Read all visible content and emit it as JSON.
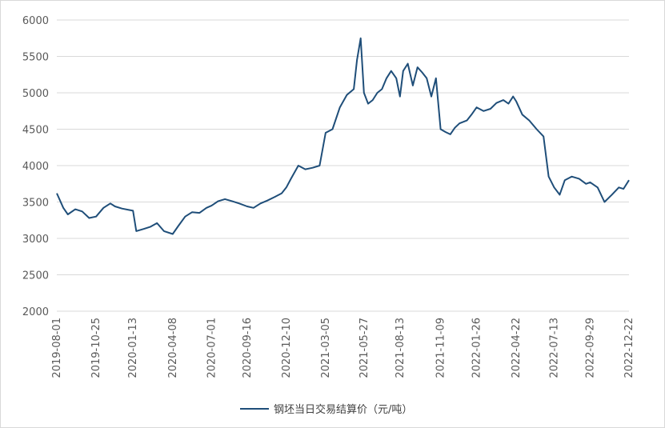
{
  "chart_data": {
    "type": "line",
    "title": "",
    "xlabel": "",
    "ylabel": "",
    "ylim": [
      2000,
      6000
    ],
    "yticks": [
      2000,
      2500,
      3000,
      3500,
      4000,
      4500,
      5000,
      5500,
      6000
    ],
    "xticks": [
      "2019-08-01",
      "2019-10-25",
      "2020-01-13",
      "2020-04-08",
      "2020-07-01",
      "2020-09-16",
      "2020-12-10",
      "2021-03-05",
      "2021-05-27",
      "2021-08-13",
      "2021-11-09",
      "2022-01-26",
      "2022-04-22",
      "2022-07-13",
      "2022-09-29",
      "2022-12-22"
    ],
    "grid": "horizontal",
    "legend_position": "bottom",
    "series": [
      {
        "name": "钢坯当日交易结算价（元/吨）",
        "color": "#1f4e79",
        "x": [
          "2019-08-01",
          "2019-08-15",
          "2019-08-25",
          "2019-09-10",
          "2019-09-25",
          "2019-10-10",
          "2019-10-25",
          "2019-11-10",
          "2019-11-25",
          "2019-12-05",
          "2019-12-20",
          "2020-01-05",
          "2020-01-13",
          "2020-01-20",
          "2020-02-05",
          "2020-02-20",
          "2020-03-05",
          "2020-03-20",
          "2020-04-08",
          "2020-04-20",
          "2020-05-05",
          "2020-05-20",
          "2020-06-05",
          "2020-06-20",
          "2020-07-01",
          "2020-07-15",
          "2020-07-30",
          "2020-08-15",
          "2020-08-30",
          "2020-09-16",
          "2020-09-30",
          "2020-10-15",
          "2020-10-30",
          "2020-11-15",
          "2020-11-30",
          "2020-12-10",
          "2020-12-20",
          "2021-01-05",
          "2021-01-20",
          "2021-02-05",
          "2021-02-20",
          "2021-03-05",
          "2021-03-20",
          "2021-04-05",
          "2021-04-20",
          "2021-05-05",
          "2021-05-12",
          "2021-05-20",
          "2021-05-27",
          "2021-06-05",
          "2021-06-15",
          "2021-06-25",
          "2021-07-05",
          "2021-07-15",
          "2021-07-25",
          "2021-08-05",
          "2021-08-13",
          "2021-08-20",
          "2021-08-30",
          "2021-09-10",
          "2021-09-20",
          "2021-09-30",
          "2021-10-10",
          "2021-10-20",
          "2021-10-30",
          "2021-11-09",
          "2021-11-20",
          "2021-11-30",
          "2021-12-10",
          "2021-12-20",
          "2022-01-05",
          "2022-01-15",
          "2022-01-26",
          "2022-02-10",
          "2022-02-25",
          "2022-03-10",
          "2022-03-25",
          "2022-04-05",
          "2022-04-15",
          "2022-04-22",
          "2022-05-05",
          "2022-05-20",
          "2022-06-05",
          "2022-06-20",
          "2022-07-01",
          "2022-07-13",
          "2022-07-25",
          "2022-08-05",
          "2022-08-20",
          "2022-09-05",
          "2022-09-20",
          "2022-09-29",
          "2022-10-15",
          "2022-10-30",
          "2022-11-15",
          "2022-11-30",
          "2022-12-10",
          "2022-12-22"
        ],
        "y": [
          3620,
          3420,
          3330,
          3400,
          3370,
          3280,
          3300,
          3420,
          3480,
          3440,
          3410,
          3390,
          3380,
          3100,
          3130,
          3160,
          3210,
          3100,
          3060,
          3170,
          3300,
          3360,
          3350,
          3420,
          3450,
          3510,
          3540,
          3510,
          3480,
          3440,
          3420,
          3480,
          3520,
          3570,
          3620,
          3700,
          3820,
          4000,
          3950,
          3970,
          4000,
          4450,
          4500,
          4800,
          4970,
          5050,
          5450,
          5750,
          5000,
          4850,
          4900,
          5000,
          5050,
          5200,
          5300,
          5200,
          4950,
          5300,
          5400,
          5100,
          5350,
          5280,
          5200,
          4950,
          5200,
          4500,
          4460,
          4430,
          4520,
          4580,
          4620,
          4700,
          4800,
          4750,
          4780,
          4860,
          4900,
          4850,
          4950,
          4880,
          4700,
          4620,
          4500,
          4400,
          3850,
          3700,
          3600,
          3800,
          3850,
          3820,
          3750,
          3770,
          3700,
          3500,
          3600,
          3700,
          3680,
          3800
        ]
      }
    ]
  }
}
